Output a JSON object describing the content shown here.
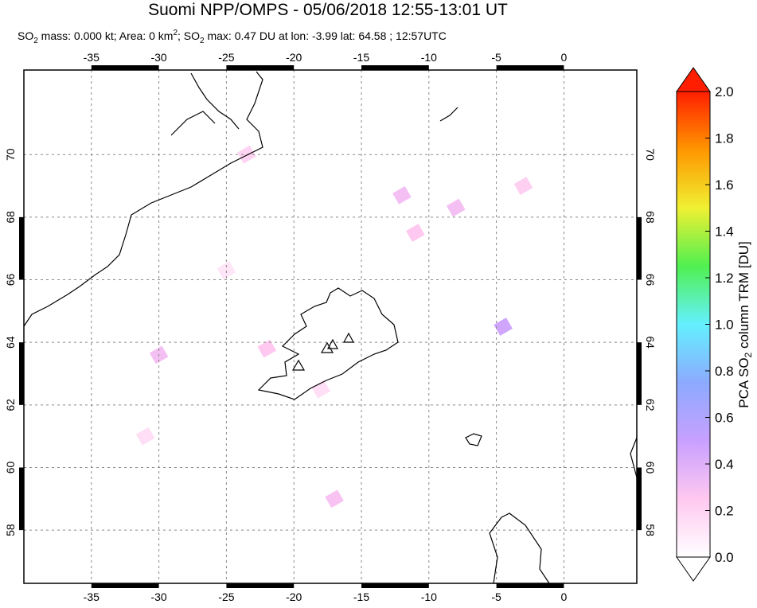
{
  "chart_data": {
    "type": "map",
    "title": "Suomi NPP/OMPS - 05/06/2018 12:55-13:01 UT",
    "subtitle_parts": [
      "SO",
      "2",
      " mass: 0.000 kt; Area: 0 km",
      "2",
      "; SO",
      "2",
      " max: 0.47 DU at lon: -3.99 lat: 64.58 ; 12:57UTC"
    ],
    "xlim": [
      -40,
      5.4
    ],
    "ylim": [
      56.3,
      72.7
    ],
    "xticks": [
      -35,
      -30,
      -25,
      -20,
      -15,
      -10,
      -5,
      0
    ],
    "yticks": [
      58,
      60,
      62,
      64,
      66,
      68,
      70
    ],
    "grid": true,
    "colorbar": {
      "label_parts": [
        "PCA SO",
        "2",
        " column TRM [DU]"
      ],
      "lim": [
        0,
        2
      ],
      "ticks": [
        {
          "value": 0,
          "label": "0.0"
        },
        {
          "value": 0.2,
          "label": "0.2"
        },
        {
          "value": 0.4,
          "label": "0.4"
        },
        {
          "value": 0.6,
          "label": "0.6"
        },
        {
          "value": 0.8,
          "label": "0.8"
        },
        {
          "value": 1,
          "label": "1.0"
        },
        {
          "value": 1.2,
          "label": "1.2"
        },
        {
          "value": 1.4,
          "label": "1.4"
        },
        {
          "value": 1.6,
          "label": "1.6"
        },
        {
          "value": 1.8,
          "label": "1.8"
        },
        {
          "value": 2,
          "label": "2.0"
        }
      ],
      "colors": [
        "#ffffff",
        "#ffc8f0",
        "#c8a0ff",
        "#8caaff",
        "#64f0ff",
        "#50f050",
        "#f0f032",
        "#ff9600",
        "#ff1e00"
      ]
    },
    "pixels": {
      "lon": [
        -4.5,
        -8,
        -12,
        -30,
        -22,
        -17,
        -11,
        -23.5,
        -31,
        -3,
        -18,
        -25
      ],
      "lat": [
        64.5,
        68.3,
        68.7,
        63.6,
        63.8,
        59,
        67.5,
        70,
        61,
        69,
        62.5,
        66.3
      ],
      "values": [
        0.47,
        0.3,
        0.3,
        0.3,
        0.25,
        0.28,
        0.25,
        0.2,
        0.15,
        0.22,
        0.15,
        0.12
      ]
    }
  }
}
